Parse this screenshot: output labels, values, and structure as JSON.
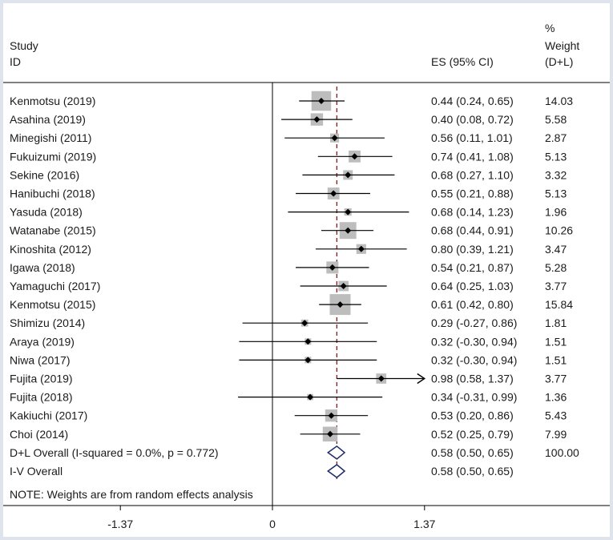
{
  "header": {
    "study_label": "Study",
    "id_label": "ID",
    "es_label": "ES (95% CI)",
    "weight_label_1": "%",
    "weight_label_2": "Weight",
    "weight_label_3": "(D+L)"
  },
  "note": "NOTE: Weights are from random effects analysis",
  "colors": {
    "frame": "#dfe4ec",
    "box": "#bdbdbd",
    "line": "#000000",
    "diamond": "#1f2a6b",
    "overall_line": "#8b1a1a"
  },
  "chart_data": {
    "type": "forest",
    "xlim": [
      -1.37,
      1.37
    ],
    "ticks": [
      -1.37,
      0,
      1.37
    ],
    "tick_labels": [
      "-1.37",
      "0",
      "1.37"
    ],
    "reference_line": 0,
    "overall_estimate": 0.58,
    "studies": [
      {
        "name": "Kenmotsu (2019)",
        "es": 0.44,
        "lo": 0.24,
        "hi": 0.65,
        "es_text": "0.44 (0.24, 0.65)",
        "weight": 14.03,
        "weight_text": "14.03"
      },
      {
        "name": "Asahina (2019)",
        "es": 0.4,
        "lo": 0.08,
        "hi": 0.72,
        "es_text": "0.40 (0.08, 0.72)",
        "weight": 5.58,
        "weight_text": "5.58"
      },
      {
        "name": "Minegishi (2011)",
        "es": 0.56,
        "lo": 0.11,
        "hi": 1.01,
        "es_text": "0.56 (0.11, 1.01)",
        "weight": 2.87,
        "weight_text": "2.87"
      },
      {
        "name": "Fukuizumi (2019)",
        "es": 0.74,
        "lo": 0.41,
        "hi": 1.08,
        "es_text": "0.74 (0.41, 1.08)",
        "weight": 5.13,
        "weight_text": "5.13"
      },
      {
        "name": "Sekine (2016)",
        "es": 0.68,
        "lo": 0.27,
        "hi": 1.1,
        "es_text": "0.68 (0.27, 1.10)",
        "weight": 3.32,
        "weight_text": "3.32"
      },
      {
        "name": "Hanibuchi (2018)",
        "es": 0.55,
        "lo": 0.21,
        "hi": 0.88,
        "es_text": "0.55 (0.21, 0.88)",
        "weight": 5.13,
        "weight_text": "5.13"
      },
      {
        "name": "Yasuda (2018)",
        "es": 0.68,
        "lo": 0.14,
        "hi": 1.23,
        "es_text": "0.68 (0.14, 1.23)",
        "weight": 1.96,
        "weight_text": "1.96"
      },
      {
        "name": "Watanabe (2015)",
        "es": 0.68,
        "lo": 0.44,
        "hi": 0.91,
        "es_text": "0.68 (0.44, 0.91)",
        "weight": 10.26,
        "weight_text": "10.26"
      },
      {
        "name": "Kinoshita (2012)",
        "es": 0.8,
        "lo": 0.39,
        "hi": 1.21,
        "es_text": "0.80 (0.39, 1.21)",
        "weight": 3.47,
        "weight_text": "3.47"
      },
      {
        "name": "Igawa (2018)",
        "es": 0.54,
        "lo": 0.21,
        "hi": 0.87,
        "es_text": "0.54 (0.21, 0.87)",
        "weight": 5.28,
        "weight_text": "5.28"
      },
      {
        "name": "Yamaguchi (2017)",
        "es": 0.64,
        "lo": 0.25,
        "hi": 1.03,
        "es_text": "0.64 (0.25, 1.03)",
        "weight": 3.77,
        "weight_text": "3.77"
      },
      {
        "name": "Kenmotsu (2015)",
        "es": 0.61,
        "lo": 0.42,
        "hi": 0.8,
        "es_text": "0.61 (0.42, 0.80)",
        "weight": 15.84,
        "weight_text": "15.84"
      },
      {
        "name": "Shimizu (2014)",
        "es": 0.29,
        "lo": -0.27,
        "hi": 0.86,
        "es_text": "0.29 (-0.27, 0.86)",
        "weight": 1.81,
        "weight_text": "1.81"
      },
      {
        "name": "Araya (2019)",
        "es": 0.32,
        "lo": -0.3,
        "hi": 0.94,
        "es_text": "0.32 (-0.30, 0.94)",
        "weight": 1.51,
        "weight_text": "1.51"
      },
      {
        "name": "Niwa (2017)",
        "es": 0.32,
        "lo": -0.3,
        "hi": 0.94,
        "es_text": "0.32 (-0.30, 0.94)",
        "weight": 1.51,
        "weight_text": "1.51"
      },
      {
        "name": "Fujita (2019)",
        "es": 0.98,
        "lo": 0.58,
        "hi": 1.37,
        "es_text": "0.98 (0.58, 1.37)",
        "weight": 3.77,
        "weight_text": "3.77",
        "arrow": true
      },
      {
        "name": "Fujita (2018)",
        "es": 0.34,
        "lo": -0.31,
        "hi": 0.99,
        "es_text": "0.34 (-0.31, 0.99)",
        "weight": 1.36,
        "weight_text": "1.36"
      },
      {
        "name": "Kakiuchi (2017)",
        "es": 0.53,
        "lo": 0.2,
        "hi": 0.86,
        "es_text": "0.53 (0.20, 0.86)",
        "weight": 5.43,
        "weight_text": "5.43"
      },
      {
        "name": "Choi (2014)",
        "es": 0.52,
        "lo": 0.25,
        "hi": 0.79,
        "es_text": "0.52 (0.25, 0.79)",
        "weight": 7.99,
        "weight_text": "7.99"
      }
    ],
    "overall": [
      {
        "name": "D+L Overall  (I-squared = 0.0%, p = 0.772)",
        "es": 0.58,
        "lo": 0.5,
        "hi": 0.65,
        "es_text": "0.58 (0.50, 0.65)",
        "weight_text": "100.00"
      },
      {
        "name": "I-V Overall",
        "es": 0.58,
        "lo": 0.5,
        "hi": 0.65,
        "es_text": "0.58 (0.50, 0.65)",
        "weight_text": ""
      }
    ]
  }
}
